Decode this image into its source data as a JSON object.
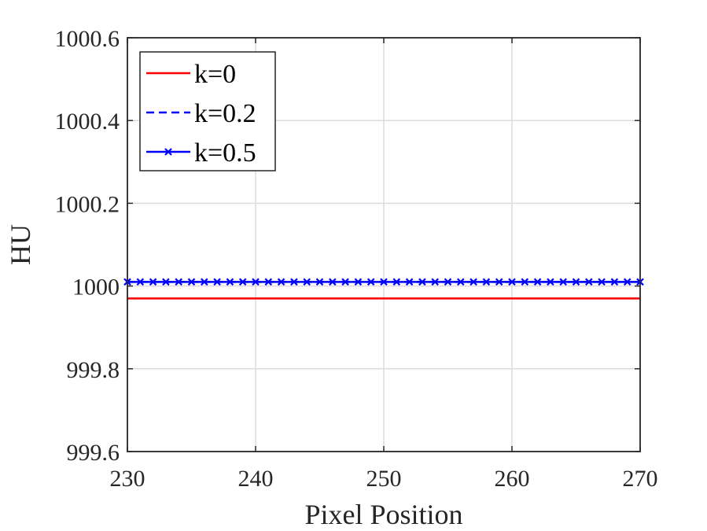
{
  "chart_data": {
    "type": "line",
    "xlabel": "Pixel Position",
    "ylabel": "HU",
    "xlim": [
      230,
      270
    ],
    "ylim": [
      999.6,
      1000.6
    ],
    "xticks": [
      230,
      240,
      250,
      260,
      270
    ],
    "xtick_labels": [
      "230",
      "240",
      "250",
      "260",
      "270"
    ],
    "yticks": [
      999.6,
      999.8,
      1000,
      1000.2,
      1000.4,
      1000.6
    ],
    "ytick_labels": [
      "999.6",
      "999.8",
      "1000",
      "1000.2",
      "1000.4",
      "1000.6"
    ],
    "grid": true,
    "legend_position": "top-left",
    "x": [
      230,
      231,
      232,
      233,
      234,
      235,
      236,
      237,
      238,
      239,
      240,
      241,
      242,
      243,
      244,
      245,
      246,
      247,
      248,
      249,
      250,
      251,
      252,
      253,
      254,
      255,
      256,
      257,
      258,
      259,
      260,
      261,
      262,
      263,
      264,
      265,
      266,
      267,
      268,
      269,
      270
    ],
    "series": [
      {
        "name": "k=0",
        "color": "#ff0000",
        "style": "solid",
        "marker": "none",
        "values": [
          999.97,
          999.97,
          999.97,
          999.97,
          999.97,
          999.97,
          999.97,
          999.97,
          999.97,
          999.97,
          999.97,
          999.97,
          999.97,
          999.97,
          999.97,
          999.97,
          999.97,
          999.97,
          999.97,
          999.97,
          999.97,
          999.97,
          999.97,
          999.97,
          999.97,
          999.97,
          999.97,
          999.97,
          999.97,
          999.97,
          999.97,
          999.97,
          999.97,
          999.97,
          999.97,
          999.97,
          999.97,
          999.97,
          999.97,
          999.97,
          999.97
        ]
      },
      {
        "name": "k=0.2",
        "color": "#0000ff",
        "style": "dashed",
        "marker": "none",
        "values": [
          1000.01,
          1000.01,
          1000.01,
          1000.01,
          1000.01,
          1000.01,
          1000.01,
          1000.01,
          1000.01,
          1000.01,
          1000.01,
          1000.01,
          1000.01,
          1000.01,
          1000.01,
          1000.01,
          1000.01,
          1000.01,
          1000.01,
          1000.01,
          1000.01,
          1000.01,
          1000.01,
          1000.01,
          1000.01,
          1000.01,
          1000.01,
          1000.01,
          1000.01,
          1000.01,
          1000.01,
          1000.01,
          1000.01,
          1000.01,
          1000.01,
          1000.01,
          1000.01,
          1000.01,
          1000.01,
          1000.01,
          1000.01
        ]
      },
      {
        "name": "k=0.5",
        "color": "#0000ff",
        "style": "solid",
        "marker": "x",
        "values": [
          1000.01,
          1000.01,
          1000.01,
          1000.01,
          1000.01,
          1000.01,
          1000.01,
          1000.01,
          1000.01,
          1000.01,
          1000.01,
          1000.01,
          1000.01,
          1000.01,
          1000.01,
          1000.01,
          1000.01,
          1000.01,
          1000.01,
          1000.01,
          1000.01,
          1000.01,
          1000.01,
          1000.01,
          1000.01,
          1000.01,
          1000.01,
          1000.01,
          1000.01,
          1000.01,
          1000.01,
          1000.01,
          1000.01,
          1000.01,
          1000.01,
          1000.01,
          1000.01,
          1000.01,
          1000.01,
          1000.01,
          1000.01
        ]
      }
    ]
  }
}
